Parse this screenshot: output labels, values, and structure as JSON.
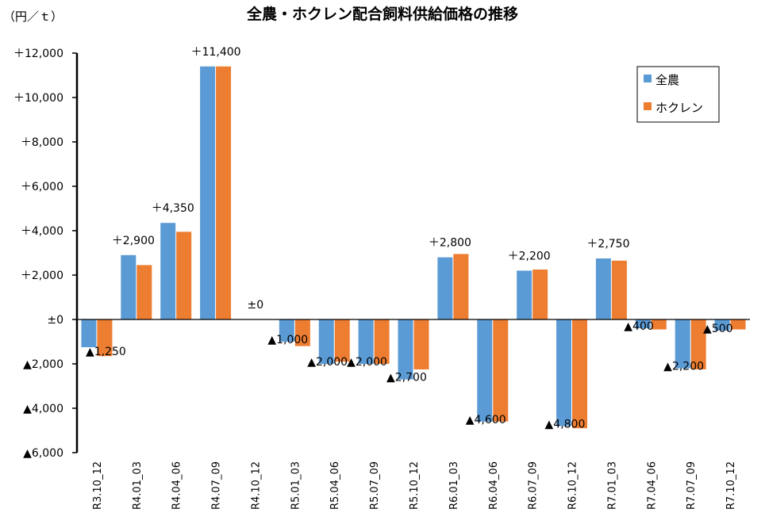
{
  "chart_data": {
    "type": "bar",
    "title": "全農・ホクレン配合飼料供給価格の推移",
    "unit_label": "（円／ｔ）",
    "ylim": [
      -6000,
      12000
    ],
    "yticks": [
      {
        "value": 12000,
        "label": "＋12,000"
      },
      {
        "value": 10000,
        "label": "＋10,000"
      },
      {
        "value": 8000,
        "label": "＋8,000"
      },
      {
        "value": 6000,
        "label": "＋6,000"
      },
      {
        "value": 4000,
        "label": "＋4,000"
      },
      {
        "value": 2000,
        "label": "＋2,000"
      },
      {
        "value": 0,
        "label": "±0"
      },
      {
        "value": -2000,
        "label": "▲2,000"
      },
      {
        "value": -4000,
        "label": "▲4,000"
      },
      {
        "value": -6000,
        "label": "▲6,000"
      }
    ],
    "categories": [
      "R3.10_12",
      "R4.01_03",
      "R4.04_06",
      "R4.07_09",
      "R4.10_12",
      "R5.01_03",
      "R5.04_06",
      "R5.07_09",
      "R5.10_12",
      "R6.01_03",
      "R6.04_06",
      "R6.07_09",
      "R6.10_12",
      "R7.01_03",
      "R7.04_06",
      "R7.07_09",
      "R7.10_12"
    ],
    "series": [
      {
        "name": "全農",
        "color": "#5b9bd5",
        "values": [
          -1250,
          2900,
          4350,
          11400,
          0,
          -1000,
          -2000,
          -2000,
          -2700,
          2800,
          -4600,
          2200,
          -4800,
          2750,
          -400,
          -2200,
          -500
        ]
      },
      {
        "name": "ホクレン",
        "color": "#ed7d31",
        "values": [
          -1650,
          2450,
          3950,
          11400,
          0,
          -1200,
          -1900,
          -2000,
          -2250,
          2950,
          -4600,
          2250,
          -4900,
          2650,
          -450,
          -2250,
          -450
        ]
      }
    ],
    "data_labels": [
      "▲1,250",
      "＋2,900",
      "＋4,350",
      "＋11,400",
      "±0",
      "▲1,000",
      "▲2,000",
      "▲2,000",
      "▲2,700",
      "＋2,800",
      "▲4,600",
      "＋2,200",
      "▲4,800",
      "＋2,750",
      "▲400",
      "▲2,200",
      "▲500"
    ],
    "legend_position": "top-right",
    "grid": false
  }
}
